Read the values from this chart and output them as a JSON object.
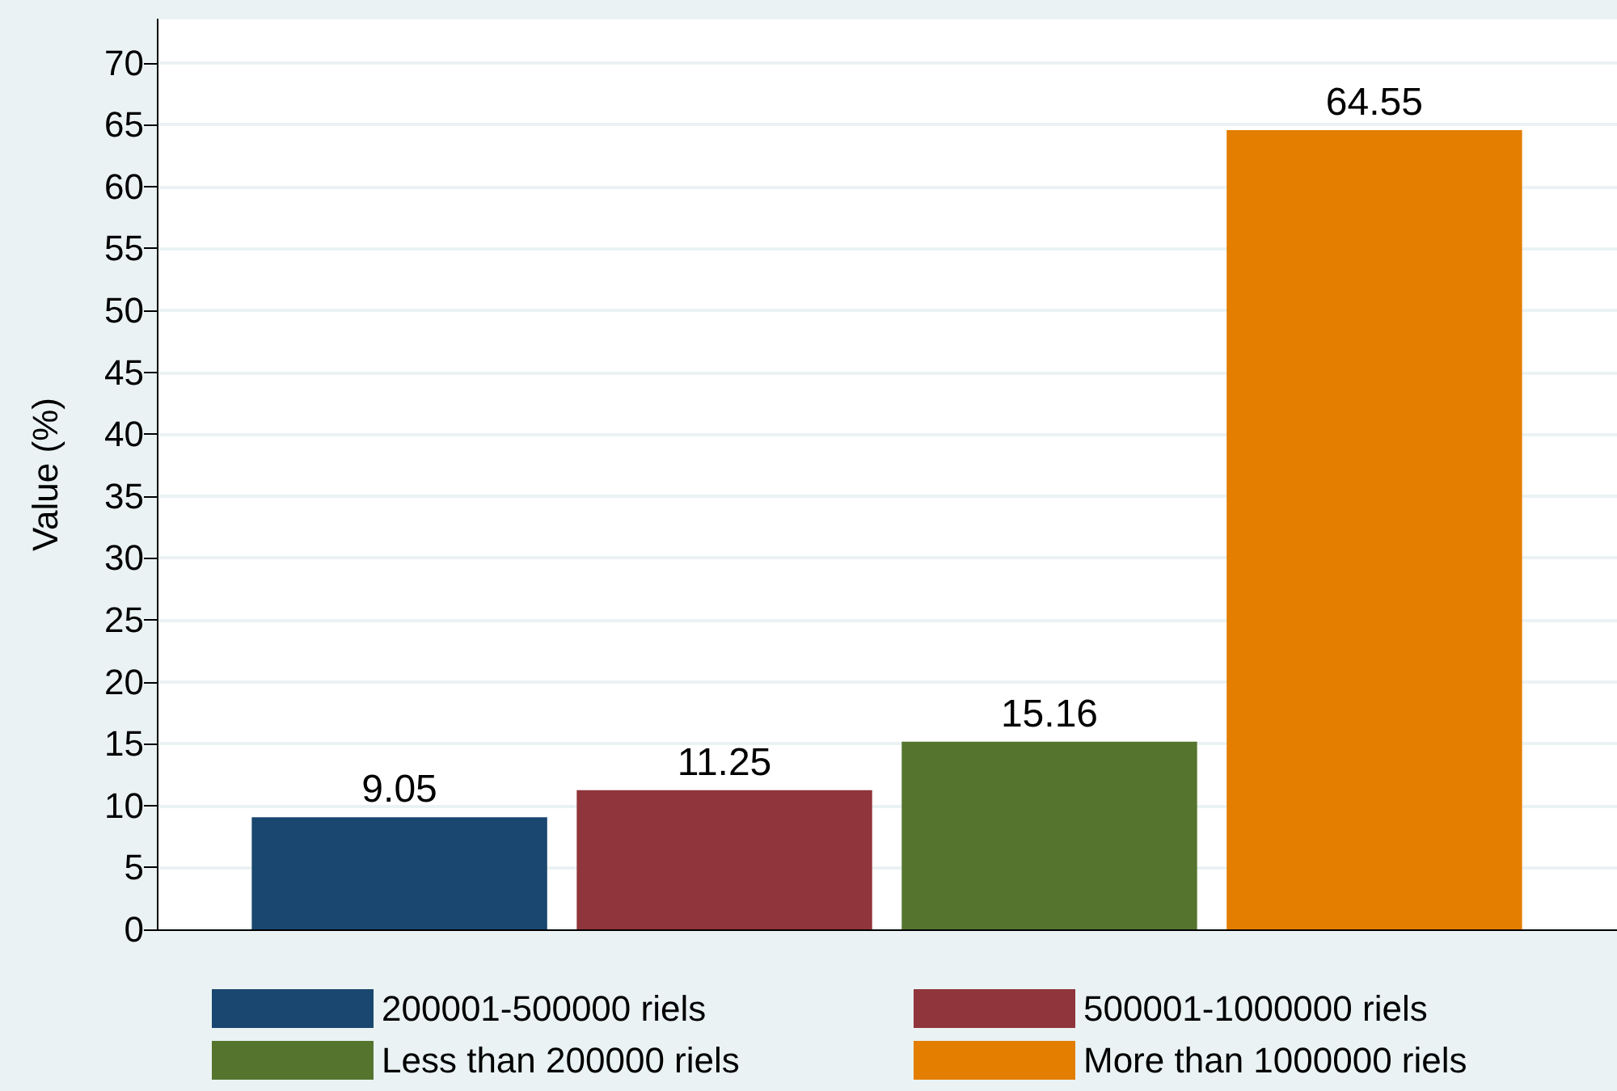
{
  "chart_data": {
    "type": "bar",
    "ylabel": "Value (%)",
    "categories": [
      null
    ],
    "series": [
      {
        "name": "200001-500000 riels",
        "color": "#1a476f",
        "values": [
          9.05
        ]
      },
      {
        "name": "500001-1000000 riels",
        "color": "#90353b",
        "values": [
          11.25
        ]
      },
      {
        "name": "Less than 200000 riels",
        "color": "#55752f",
        "values": [
          15.16
        ]
      },
      {
        "name": "More than 1000000 riels",
        "color": "#e37e00",
        "values": [
          64.55
        ]
      }
    ],
    "ylim": [
      0,
      73.5
    ],
    "yticks": [
      0,
      5,
      10,
      15,
      20,
      25,
      30,
      35,
      40,
      45,
      50,
      55,
      60,
      65,
      70
    ],
    "grid": "y",
    "legend": "bottom",
    "data_labels": true
  }
}
